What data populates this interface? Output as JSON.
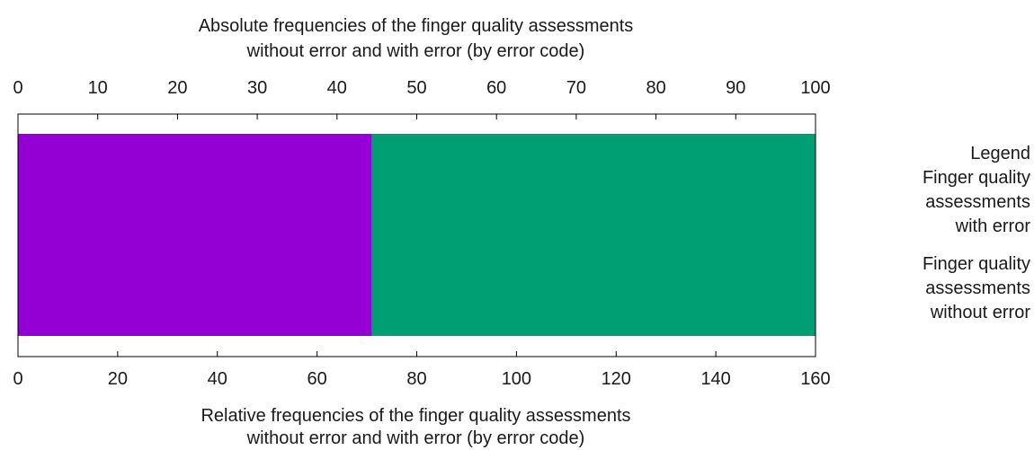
{
  "chart_data": {
    "type": "bar",
    "orientation": "horizontal-stacked",
    "title": [
      "Absolute frequencies of the finger quality assessments",
      "without error and with error (by error code)"
    ],
    "xlabel": [
      "Relative frequencies of the finger quality assessments",
      "without error and with error (by error code)"
    ],
    "top_axis": {
      "range": [
        0,
        100
      ],
      "ticks": [
        0,
        10,
        20,
        30,
        40,
        50,
        60,
        70,
        80,
        90,
        100
      ]
    },
    "bottom_axis": {
      "range": [
        0,
        160
      ],
      "ticks": [
        0,
        20,
        40,
        60,
        80,
        100,
        120,
        140,
        160
      ]
    },
    "series": [
      {
        "name": "Finger quality assessments with error",
        "color": "#9400d3",
        "values": [
          71
        ]
      },
      {
        "name": "Finger quality assessments without error",
        "color": "#009e73",
        "values": [
          89
        ]
      }
    ],
    "legend": {
      "title": "Legend",
      "placement": "right",
      "entries": [
        [
          "Finger quality",
          "assessments",
          "with error"
        ],
        [
          "Finger quality",
          "assessments",
          "without error"
        ]
      ]
    },
    "grid": false
  }
}
